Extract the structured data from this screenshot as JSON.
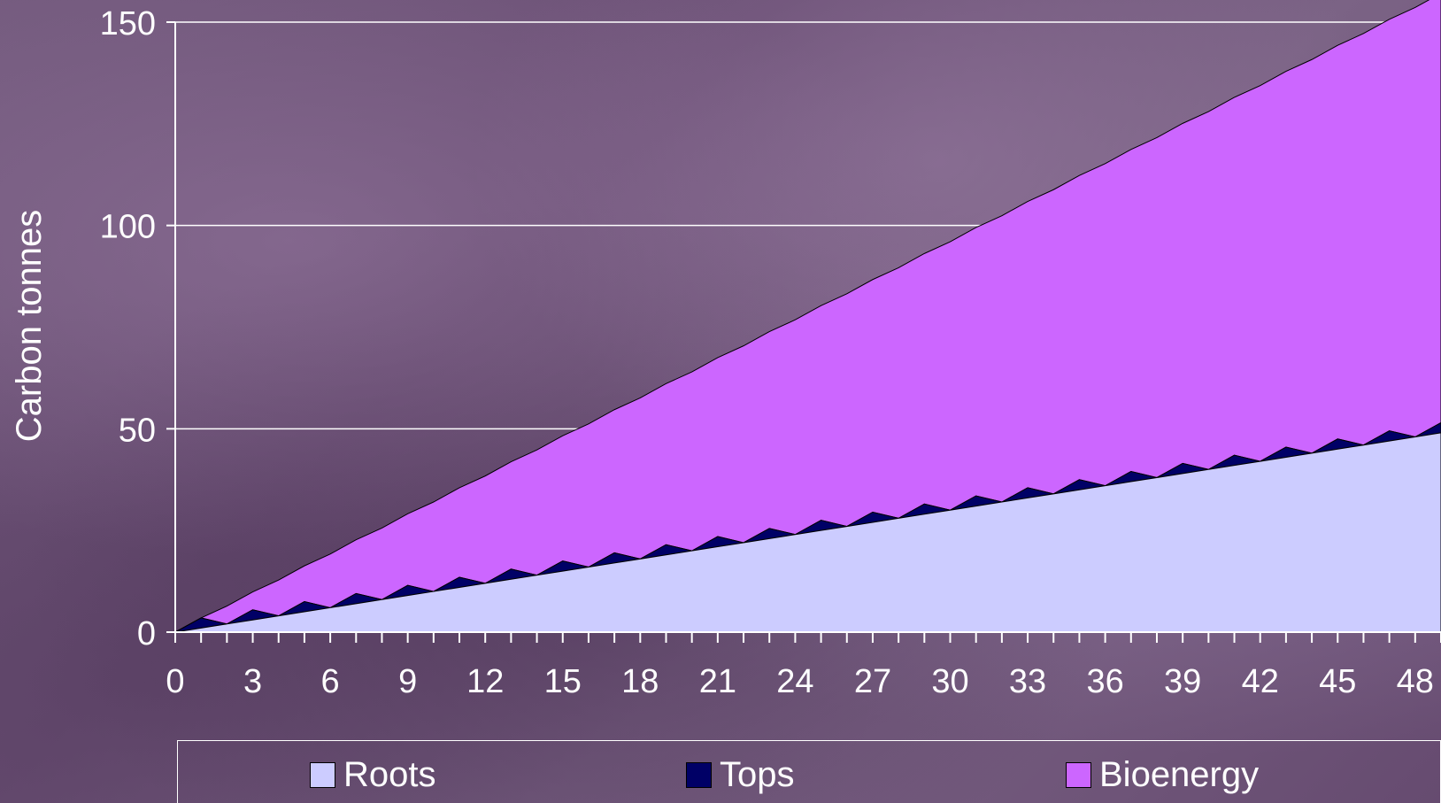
{
  "chart_data": {
    "type": "area",
    "stacked": true,
    "ylabel": "Carbon tonnes",
    "xlabel": "",
    "ylim": [
      0,
      150
    ],
    "xlim": [
      0,
      49
    ],
    "yticks": [
      0,
      50,
      100,
      150
    ],
    "xtick_labels": [
      0,
      3,
      6,
      9,
      12,
      15,
      18,
      21,
      24,
      27,
      30,
      33,
      36,
      39,
      42,
      45,
      48
    ],
    "grid": true,
    "legend_position": "bottom",
    "series": [
      {
        "name": "Roots",
        "color": "#ccccff",
        "rate_per_year": 1.0
      },
      {
        "name": "Tops",
        "color": "#000066",
        "peak": 2.5
      },
      {
        "name": "Bioenergy",
        "color": "#cc66ff",
        "step_every_years": 2,
        "step_size": 4.4
      }
    ]
  },
  "legend": {
    "roots": "Roots",
    "tops": "Tops",
    "bioenergy": "Bioenergy"
  },
  "colors": {
    "roots": "#ccccff",
    "tops": "#000066",
    "bioenergy": "#cc66ff",
    "axis": "#ffffff"
  }
}
